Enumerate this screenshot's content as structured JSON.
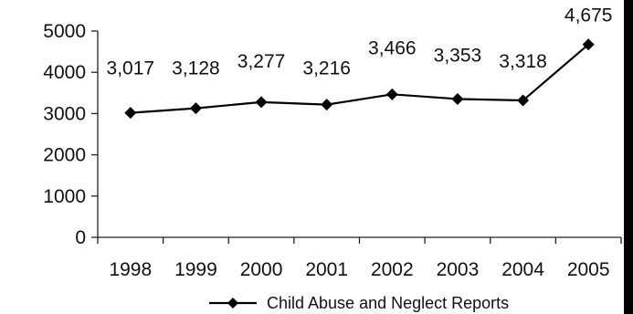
{
  "chart_data": {
    "type": "line",
    "categories": [
      "1998",
      "1999",
      "2000",
      "2001",
      "2002",
      "2003",
      "2004",
      "2005"
    ],
    "series": [
      {
        "name": "Child Abuse and Neglect Reports",
        "values": [
          3017,
          3128,
          3277,
          3216,
          3466,
          3353,
          3318,
          4675
        ],
        "data_labels": [
          "3,017",
          "3,128",
          "3,277",
          "3,216",
          "3,466",
          "3,353",
          "3,318",
          "4,675"
        ],
        "marker": "diamond",
        "color": "#000000"
      }
    ],
    "y_ticks": [
      "0",
      "1000",
      "2000",
      "3000",
      "4000",
      "5000"
    ],
    "ylim": [
      0,
      5000
    ],
    "grid": false,
    "legend_position": "bottom"
  }
}
